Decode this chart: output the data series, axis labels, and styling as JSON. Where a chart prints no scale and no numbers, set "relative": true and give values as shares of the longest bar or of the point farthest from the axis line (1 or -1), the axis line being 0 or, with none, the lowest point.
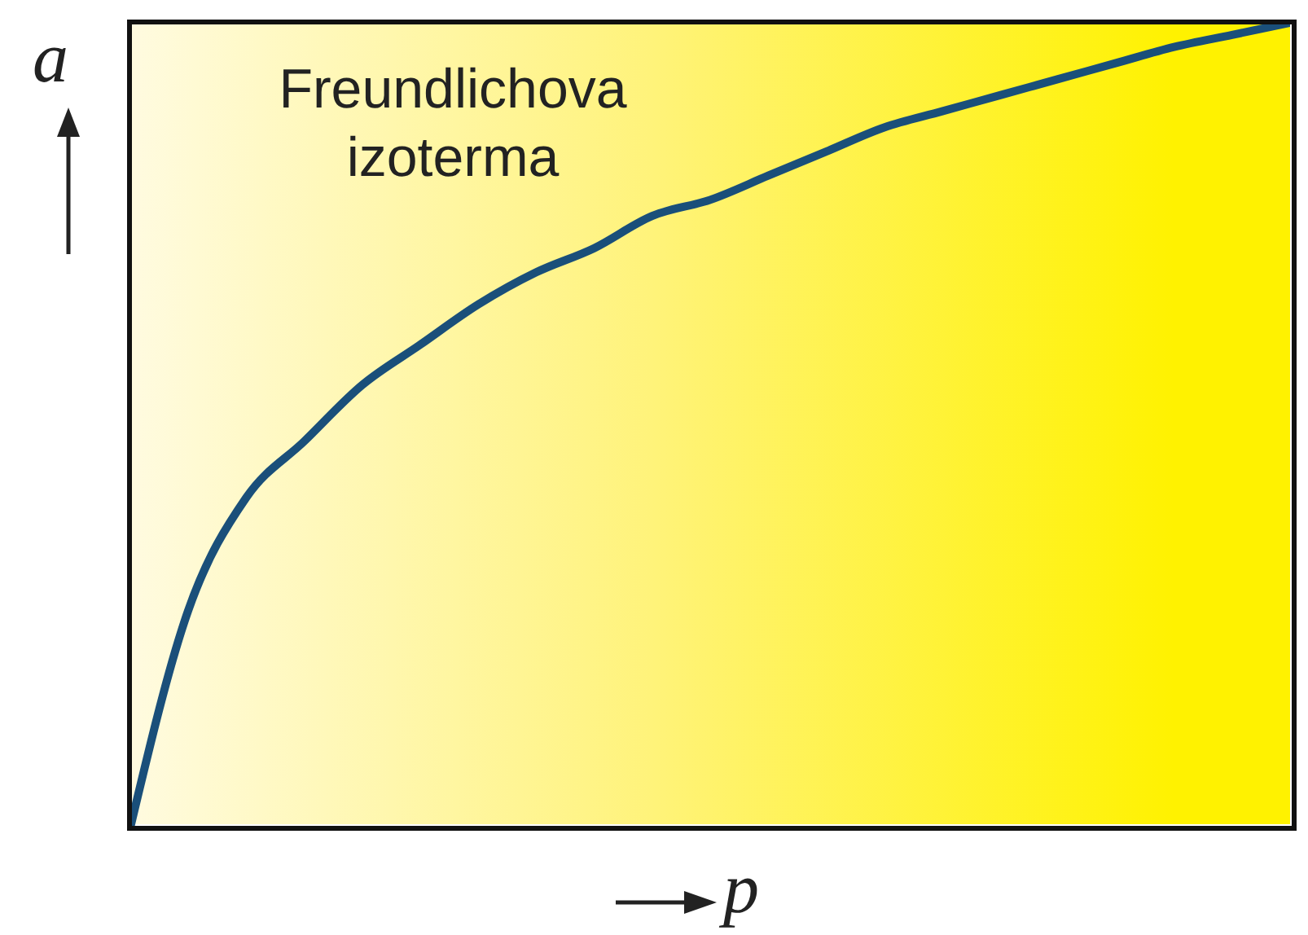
{
  "chart_data": {
    "type": "line",
    "title": "Freundlichova izoterma",
    "xlabel": "p",
    "ylabel": "a",
    "relative": true,
    "marker": "none",
    "line_style": "solid",
    "color": "#1a4f7a",
    "categories": [
      null,
      null,
      null,
      null,
      null,
      null,
      null,
      null,
      null,
      null,
      null,
      null,
      null,
      null,
      null,
      null,
      null,
      null,
      null,
      null,
      null
    ],
    "values": [
      0,
      0.27,
      0.41,
      0.48,
      0.55,
      0.6,
      0.65,
      0.69,
      0.72,
      0.76,
      0.78,
      0.81,
      0.84,
      0.87,
      0.89,
      0.91,
      0.93,
      0.95,
      0.97,
      0.985,
      1
    ]
  }
}
